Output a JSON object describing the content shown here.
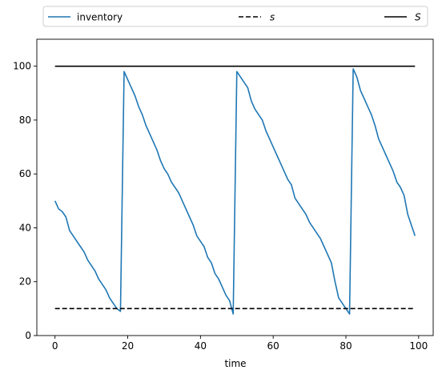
{
  "chart_data": {
    "type": "line",
    "title": "",
    "xlabel": "time",
    "ylabel": "",
    "xlim": [
      -5,
      104
    ],
    "ylim": [
      0,
      110
    ],
    "xticks": [
      0,
      20,
      40,
      60,
      80,
      100
    ],
    "yticks": [
      0,
      20,
      40,
      60,
      80,
      100
    ],
    "grid": false,
    "legend_placement": "top, above plot",
    "series": [
      {
        "name": "inventory",
        "color": "#1f77b4",
        "style": "solid",
        "x": [
          0,
          1,
          2,
          3,
          4,
          5,
          6,
          7,
          8,
          9,
          10,
          11,
          12,
          13,
          14,
          15,
          16,
          17,
          18,
          19,
          20,
          21,
          22,
          23,
          24,
          25,
          26,
          27,
          28,
          29,
          30,
          31,
          32,
          33,
          34,
          35,
          36,
          37,
          38,
          39,
          40,
          41,
          42,
          43,
          44,
          45,
          46,
          47,
          48,
          49,
          50,
          51,
          52,
          53,
          54,
          55,
          56,
          57,
          58,
          59,
          60,
          61,
          62,
          63,
          64,
          65,
          66,
          67,
          68,
          69,
          70,
          71,
          72,
          73,
          74,
          75,
          76,
          77,
          78,
          79,
          80,
          81,
          82,
          83,
          84,
          85,
          86,
          87,
          88,
          89,
          90,
          91,
          92,
          93,
          94,
          95,
          96,
          97,
          98,
          99
        ],
        "values": [
          50,
          47,
          46,
          44,
          39,
          37,
          35,
          33,
          31,
          28,
          26,
          24,
          21,
          19,
          17,
          14,
          12,
          10,
          9,
          98,
          95,
          92,
          89,
          85,
          82,
          78,
          75,
          72,
          69,
          65,
          62,
          60,
          57,
          55,
          53,
          50,
          47,
          44,
          41,
          37,
          35,
          33,
          29,
          27,
          23,
          21,
          18,
          15,
          13,
          8,
          98,
          96,
          94,
          92,
          87,
          84,
          82,
          80,
          76,
          73,
          70,
          67,
          64,
          61,
          58,
          56,
          51,
          49,
          47,
          45,
          42,
          40,
          38,
          36,
          33,
          30,
          27,
          20,
          14,
          12,
          10,
          8,
          99,
          96,
          91,
          88,
          85,
          82,
          78,
          73,
          70,
          67,
          64,
          61,
          57,
          55,
          52,
          45,
          41,
          37
        ]
      },
      {
        "name": "s",
        "color": "#000000",
        "style": "dashed",
        "x": [
          0,
          99
        ],
        "values": [
          10,
          10
        ]
      },
      {
        "name": "S",
        "color": "#000000",
        "style": "solid",
        "x": [
          0,
          99
        ],
        "values": [
          100,
          100
        ]
      }
    ]
  }
}
